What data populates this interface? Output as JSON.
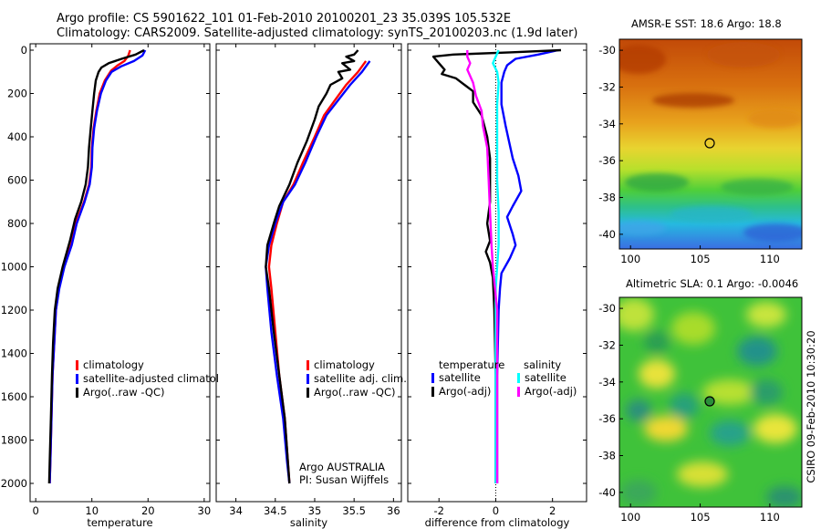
{
  "header": {
    "line1": "Argo profile: CS 5901622_101 01-Feb-2010 20100201_23 35.039S 105.532E",
    "line2": "Climatology: CARS2009. Satellite-adjusted climatology: synTS_20100203.nc (1.9d later)"
  },
  "stamp": "CSIRO 09-Feb-2010 10:30:20",
  "colors": {
    "climatology": "#ff0000",
    "satellite": "#0000ff",
    "argo": "#000000",
    "sal_satellite": "#00ffff",
    "sal_argo": "#ff00ff"
  },
  "chart_data": [
    {
      "type": "line",
      "id": "temperature",
      "xlabel": "temperature",
      "xlim": [
        -1,
        31
      ],
      "xticks": [
        0,
        10,
        20,
        30
      ],
      "ylim": [
        0,
        2050
      ],
      "yticks": [
        0,
        200,
        400,
        600,
        800,
        1000,
        1200,
        1400,
        1600,
        1800,
        2000
      ],
      "y_reversed": true,
      "legend": [
        "climatology",
        "satellite-adjusted climatology",
        "Argo(..raw -QC)"
      ],
      "series": [
        {
          "name": "climatology",
          "color": "#ff0000",
          "points": [
            [
              16.8,
              0
            ],
            [
              16.5,
              25
            ],
            [
              15.8,
              50
            ],
            [
              14.6,
              70
            ],
            [
              13.4,
              95
            ],
            [
              12.3,
              140
            ],
            [
              11.4,
              200
            ],
            [
              10.8,
              280
            ],
            [
              10.3,
              360
            ],
            [
              10.0,
              450
            ],
            [
              9.9,
              540
            ],
            [
              9.5,
              620
            ],
            [
              8.6,
              700
            ],
            [
              7.1,
              800
            ],
            [
              6.3,
              900
            ],
            [
              5.0,
              1000
            ],
            [
              4.1,
              1100
            ],
            [
              3.6,
              1200
            ],
            [
              3.3,
              1350
            ],
            [
              3.0,
              1500
            ],
            [
              2.8,
              1700
            ],
            [
              2.6,
              1900
            ],
            [
              2.5,
              2000
            ]
          ]
        },
        {
          "name": "satellite-adjusted climatology",
          "color": "#0000ff",
          "points": [
            [
              19.5,
              0
            ],
            [
              19.0,
              25
            ],
            [
              17.5,
              50
            ],
            [
              15.2,
              75
            ],
            [
              13.5,
              100
            ],
            [
              12.5,
              140
            ],
            [
              11.6,
              200
            ],
            [
              10.9,
              280
            ],
            [
              10.4,
              360
            ],
            [
              10.1,
              450
            ],
            [
              10.0,
              540
            ],
            [
              9.6,
              620
            ],
            [
              8.7,
              700
            ],
            [
              7.3,
              800
            ],
            [
              6.4,
              900
            ],
            [
              5.1,
              1000
            ],
            [
              4.2,
              1100
            ],
            [
              3.6,
              1200
            ],
            [
              3.3,
              1350
            ],
            [
              3.0,
              1500
            ],
            [
              2.8,
              1700
            ],
            [
              2.6,
              1900
            ],
            [
              2.5,
              2000
            ]
          ]
        },
        {
          "name": "Argo(..raw -QC)",
          "color": "#000000",
          "points": [
            [
              19.3,
              0
            ],
            [
              17.8,
              20
            ],
            [
              15.3,
              40
            ],
            [
              13.0,
              60
            ],
            [
              11.7,
              80
            ],
            [
              11.2,
              100
            ],
            [
              10.7,
              140
            ],
            [
              10.4,
              200
            ],
            [
              10.1,
              280
            ],
            [
              9.8,
              360
            ],
            [
              9.5,
              450
            ],
            [
              9.3,
              540
            ],
            [
              8.9,
              620
            ],
            [
              8.1,
              700
            ],
            [
              7.0,
              780
            ],
            [
              6.1,
              880
            ],
            [
              4.8,
              1000
            ],
            [
              3.9,
              1100
            ],
            [
              3.4,
              1200
            ],
            [
              3.1,
              1350
            ],
            [
              2.9,
              1500
            ],
            [
              2.7,
              1700
            ],
            [
              2.5,
              1900
            ],
            [
              2.4,
              2000
            ]
          ]
        }
      ],
      "annotations": []
    },
    {
      "type": "line",
      "id": "salinity",
      "xlabel": "salinity",
      "xlim": [
        33.75,
        36.1
      ],
      "xticks": [
        34,
        34.5,
        35,
        35.5,
        36
      ],
      "ylim": [
        0,
        2050
      ],
      "y_reversed": true,
      "legend": [
        "climatology",
        "satellite adj. clim.",
        "Argo(..raw -QC)"
      ],
      "series": [
        {
          "name": "climatology",
          "color": "#ff0000",
          "points": [
            [
              35.65,
              50
            ],
            [
              35.55,
              100
            ],
            [
              35.4,
              160
            ],
            [
              35.26,
              230
            ],
            [
              35.12,
              300
            ],
            [
              35.0,
              400
            ],
            [
              34.85,
              520
            ],
            [
              34.73,
              620
            ],
            [
              34.6,
              700
            ],
            [
              34.52,
              800
            ],
            [
              34.45,
              900
            ],
            [
              34.42,
              1000
            ],
            [
              34.45,
              1100
            ],
            [
              34.5,
              1300
            ],
            [
              34.55,
              1500
            ],
            [
              34.62,
              1700
            ],
            [
              34.66,
              1900
            ],
            [
              34.68,
              2000
            ]
          ]
        },
        {
          "name": "satellite adj. clim.",
          "color": "#0000ff",
          "points": [
            [
              35.7,
              50
            ],
            [
              35.6,
              100
            ],
            [
              35.45,
              160
            ],
            [
              35.3,
              230
            ],
            [
              35.15,
              300
            ],
            [
              35.02,
              400
            ],
            [
              34.88,
              520
            ],
            [
              34.75,
              620
            ],
            [
              34.6,
              700
            ],
            [
              34.5,
              800
            ],
            [
              34.42,
              900
            ],
            [
              34.38,
              1000
            ],
            [
              34.4,
              1100
            ],
            [
              34.45,
              1300
            ],
            [
              34.52,
              1500
            ],
            [
              34.6,
              1700
            ],
            [
              34.65,
              1900
            ],
            [
              34.68,
              2000
            ]
          ]
        },
        {
          "name": "Argo(..raw -QC)",
          "color": "#000000",
          "points": [
            [
              35.55,
              0
            ],
            [
              35.5,
              20
            ],
            [
              35.4,
              30
            ],
            [
              35.5,
              50
            ],
            [
              35.35,
              60
            ],
            [
              35.45,
              90
            ],
            [
              35.3,
              100
            ],
            [
              35.35,
              130
            ],
            [
              35.2,
              160
            ],
            [
              35.15,
              200
            ],
            [
              35.05,
              260
            ],
            [
              35.0,
              320
            ],
            [
              34.9,
              420
            ],
            [
              34.78,
              520
            ],
            [
              34.68,
              620
            ],
            [
              34.55,
              720
            ],
            [
              34.48,
              800
            ],
            [
              34.4,
              900
            ],
            [
              34.38,
              1000
            ],
            [
              34.42,
              1100
            ],
            [
              34.48,
              1300
            ],
            [
              34.55,
              1500
            ],
            [
              34.62,
              1700
            ],
            [
              34.66,
              1900
            ],
            [
              34.68,
              2000
            ]
          ]
        }
      ],
      "annotations": [
        "Argo AUSTRALIA",
        "PI: Susan Wijffels"
      ]
    },
    {
      "type": "line",
      "id": "difference",
      "xlabel": "difference from climatology",
      "xlim": [
        -3.1,
        3.2
      ],
      "xticks": [
        -2,
        0,
        2
      ],
      "ylim": [
        0,
        2050
      ],
      "y_reversed": true,
      "legend_groups": [
        {
          "title": "temperature",
          "entries": [
            "satellite",
            "Argo(-adj)"
          ]
        },
        {
          "title": "salinity",
          "entries": [
            "satellite",
            "Argo(-adj)"
          ]
        }
      ],
      "series": [
        {
          "name": "temperature satellite",
          "color": "#0000ff",
          "points": [
            [
              2.2,
              0
            ],
            [
              1.5,
              20
            ],
            [
              0.7,
              40
            ],
            [
              0.4,
              70
            ],
            [
              0.3,
              100
            ],
            [
              0.2,
              150
            ],
            [
              0.2,
              250
            ],
            [
              0.35,
              350
            ],
            [
              0.6,
              500
            ],
            [
              0.8,
              580
            ],
            [
              0.9,
              650
            ],
            [
              0.6,
              720
            ],
            [
              0.4,
              770
            ],
            [
              0.6,
              850
            ],
            [
              0.7,
              900
            ],
            [
              0.5,
              960
            ],
            [
              0.2,
              1030
            ],
            [
              0.15,
              1100
            ],
            [
              0.1,
              1200
            ],
            [
              0.05,
              1500
            ],
            [
              0.05,
              2000
            ]
          ]
        },
        {
          "name": "temperature Argo(-adj)",
          "color": "#000000",
          "points": [
            [
              2.3,
              0
            ],
            [
              0.5,
              10
            ],
            [
              -1.5,
              20
            ],
            [
              -2.2,
              30
            ],
            [
              -2.0,
              60
            ],
            [
              -1.8,
              90
            ],
            [
              -1.9,
              110
            ],
            [
              -1.4,
              130
            ],
            [
              -1.1,
              160
            ],
            [
              -0.8,
              190
            ],
            [
              -0.8,
              240
            ],
            [
              -0.5,
              300
            ],
            [
              -0.3,
              400
            ],
            [
              -0.2,
              500
            ],
            [
              -0.2,
              600
            ],
            [
              -0.2,
              700
            ],
            [
              -0.3,
              800
            ],
            [
              -0.2,
              880
            ],
            [
              -0.35,
              930
            ],
            [
              -0.2,
              980
            ],
            [
              -0.1,
              1050
            ],
            [
              -0.05,
              1200
            ],
            [
              0,
              1500
            ],
            [
              0,
              2000
            ]
          ]
        },
        {
          "name": "salinity satellite",
          "color": "#00ffff",
          "points": [
            [
              0.1,
              0
            ],
            [
              -0.1,
              60
            ],
            [
              0.05,
              100
            ],
            [
              0.1,
              150
            ],
            [
              0.05,
              250
            ],
            [
              0.05,
              400
            ],
            [
              0.05,
              600
            ],
            [
              0.1,
              750
            ],
            [
              0.1,
              900
            ],
            [
              0.05,
              1000
            ],
            [
              0,
              1100
            ],
            [
              0,
              1500
            ],
            [
              0,
              2000
            ]
          ]
        },
        {
          "name": "salinity Argo(-adj)",
          "color": "#ff00ff",
          "points": [
            [
              -1.0,
              0
            ],
            [
              -1.0,
              30
            ],
            [
              -0.9,
              60
            ],
            [
              -1.0,
              90
            ],
            [
              -0.8,
              150
            ],
            [
              -0.7,
              210
            ],
            [
              -0.5,
              280
            ],
            [
              -0.45,
              350
            ],
            [
              -0.3,
              450
            ],
            [
              -0.25,
              600
            ],
            [
              -0.2,
              750
            ],
            [
              -0.15,
              900
            ],
            [
              -0.1,
              1000
            ],
            [
              0.05,
              1200
            ],
            [
              0.05,
              1500
            ],
            [
              0.05,
              2000
            ]
          ]
        }
      ],
      "annotations": []
    },
    {
      "type": "heatmap",
      "id": "sst-map",
      "title": "AMSR-E SST: 18.6 Argo: 18.8",
      "xticks": [
        100,
        105,
        110
      ],
      "yticks": [
        -30,
        -32,
        -34,
        -36,
        -38,
        -40
      ],
      "xlim": [
        99.2,
        112.3
      ],
      "ylim": [
        -29.4,
        -40.8
      ],
      "marker": {
        "lon": 105.53,
        "lat": -35.04
      }
    },
    {
      "type": "heatmap",
      "id": "sla-map",
      "title": "Altimetric SLA: 0.1 Argo: -0.0046",
      "xticks": [
        100,
        105,
        110
      ],
      "yticks": [
        -30,
        -32,
        -34,
        -36,
        -38,
        -40
      ],
      "xlim": [
        99.2,
        112.3
      ],
      "ylim": [
        -29.4,
        -40.8
      ],
      "marker": {
        "lon": 105.53,
        "lat": -35.04
      }
    }
  ]
}
